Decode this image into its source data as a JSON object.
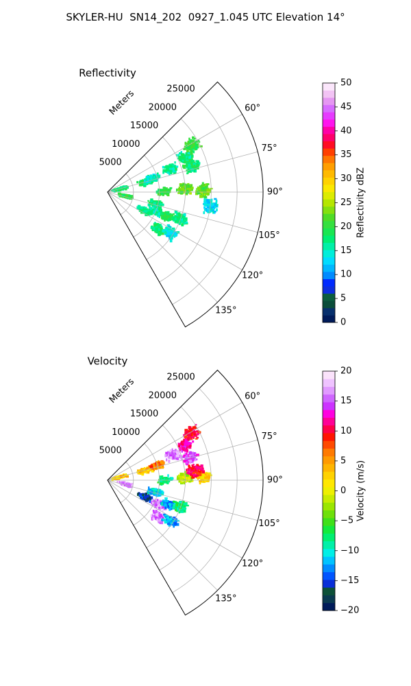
{
  "figure": {
    "title": "SKYLER-HU  SN14_202  0927_1.045 UTC Elevation 14°"
  },
  "chart_data": [
    {
      "type": "heatmap",
      "projection": "polar-sector",
      "title": "Reflectivity",
      "radial_label": "Meters",
      "theta_range_deg": [
        45,
        150
      ],
      "r_max": 30000,
      "r_ticks": [
        5000,
        10000,
        15000,
        20000,
        25000
      ],
      "r_tick_labels": [
        "5000",
        "10000",
        "15000",
        "20000",
        "25000"
      ],
      "theta_ticks": [
        60,
        75,
        90,
        105,
        120,
        135
      ],
      "theta_tick_labels": [
        "60°",
        "75°",
        "90°",
        "105°",
        "120°",
        "135°"
      ],
      "grid": true,
      "colorbar": {
        "label": "Reflectivity dBZ",
        "min": 0,
        "max": 50,
        "ticks": [
          0,
          5,
          10,
          15,
          20,
          25,
          30,
          35,
          40,
          45,
          50
        ],
        "tick_labels": [
          "0",
          "5",
          "10",
          "15",
          "20",
          "25",
          "30",
          "35",
          "40",
          "45",
          "50"
        ],
        "colors": [
          "#001b5a",
          "#07306d",
          "#0a4d3a",
          "#0c5e3f",
          "#0d2edd",
          "#002aff",
          "#008bff",
          "#00b7ff",
          "#00dcff",
          "#00eeda",
          "#00f0a6",
          "#00ee73",
          "#1ae652",
          "#35e040",
          "#4fdc27",
          "#84e00f",
          "#b5e600",
          "#dcec00",
          "#fbe800",
          "#ffd200",
          "#ffba00",
          "#ff9e00",
          "#ff7600",
          "#ff3f00",
          "#ff0c24",
          "#ff006b",
          "#ff00a7",
          "#ff14ee",
          "#e63bff",
          "#d76cff",
          "#e597f2",
          "#f2c3f4",
          "#fbe6fb"
        ]
      },
      "cells": [
        {
          "r": 3500,
          "theta": 102,
          "value": 20
        },
        {
          "r": 2500,
          "theta": 76,
          "value": 18
        },
        {
          "r": 7500,
          "theta": 76,
          "value": 18
        },
        {
          "r": 9000,
          "theta": 73,
          "value": 15
        },
        {
          "r": 13000,
          "theta": 70,
          "value": 16
        },
        {
          "r": 16500,
          "theta": 66,
          "value": 17
        },
        {
          "r": 18500,
          "theta": 61,
          "value": 20
        },
        {
          "r": 17000,
          "theta": 73,
          "value": 18
        },
        {
          "r": 11000,
          "theta": 90,
          "value": 20
        },
        {
          "r": 15000,
          "theta": 88,
          "value": 22
        },
        {
          "r": 18500,
          "theta": 89,
          "value": 22
        },
        {
          "r": 9500,
          "theta": 104,
          "value": 18
        },
        {
          "r": 10000,
          "theta": 111,
          "value": 16
        },
        {
          "r": 8000,
          "theta": 117,
          "value": 17
        },
        {
          "r": 12500,
          "theta": 112,
          "value": 19
        },
        {
          "r": 15000,
          "theta": 110,
          "value": 17
        },
        {
          "r": 12000,
          "theta": 126,
          "value": 18
        },
        {
          "r": 14500,
          "theta": 123,
          "value": 14
        },
        {
          "r": 20000,
          "theta": 98,
          "value": 13
        }
      ]
    },
    {
      "type": "heatmap",
      "projection": "polar-sector",
      "title": "Velocity",
      "radial_label": "Meters",
      "theta_range_deg": [
        45,
        150
      ],
      "r_max": 30000,
      "r_ticks": [
        5000,
        10000,
        15000,
        20000,
        25000
      ],
      "r_tick_labels": [
        "5000",
        "10000",
        "15000",
        "20000",
        "25000"
      ],
      "theta_ticks": [
        60,
        75,
        90,
        105,
        120,
        135
      ],
      "theta_tick_labels": [
        "60°",
        "75°",
        "90°",
        "105°",
        "120°",
        "135°"
      ],
      "grid": true,
      "colorbar": {
        "label": "Velocity (m/s)",
        "min": -20,
        "max": 20,
        "ticks": [
          -20,
          -15,
          -10,
          -5,
          0,
          5,
          10,
          15,
          20
        ],
        "tick_labels": [
          "−20",
          "−15",
          "−10",
          "−5",
          "0",
          "5",
          "10",
          "15",
          "20"
        ],
        "colors": [
          "#001b5a",
          "#0a3a50",
          "#0d5138",
          "#0a2fd8",
          "#0055ff",
          "#008cff",
          "#00c3ff",
          "#00efe6",
          "#00f0a8",
          "#00ef70",
          "#13ea3c",
          "#3fe019",
          "#6ee00a",
          "#9be600",
          "#c8ec00",
          "#eef000",
          "#ffe800",
          "#ffd200",
          "#ffb500",
          "#ff9a00",
          "#ff7a00",
          "#ff4a00",
          "#ff1400",
          "#ff0048",
          "#ff0096",
          "#ff00e0",
          "#cc33ff",
          "#cf66ff",
          "#e19aff",
          "#efc3ff",
          "#fbe3fb"
        ]
      },
      "cells": [
        {
          "r": 3500,
          "theta": 102,
          "value": 16
        },
        {
          "r": 2500,
          "theta": 76,
          "value": 3
        },
        {
          "r": 7500,
          "theta": 76,
          "value": 3
        },
        {
          "r": 10000,
          "theta": 74,
          "value": 6
        },
        {
          "r": 13500,
          "theta": 69,
          "value": 16
        },
        {
          "r": 16500,
          "theta": 66,
          "value": 12
        },
        {
          "r": 18500,
          "theta": 61,
          "value": 10
        },
        {
          "r": 16500,
          "theta": 75,
          "value": 15
        },
        {
          "r": 11000,
          "theta": 90,
          "value": -8
        },
        {
          "r": 15000,
          "theta": 88,
          "value": -2
        },
        {
          "r": 18500,
          "theta": 88,
          "value": 2
        },
        {
          "r": 17000,
          "theta": 84,
          "value": 10
        },
        {
          "r": 9500,
          "theta": 104,
          "value": -11
        },
        {
          "r": 8000,
          "theta": 114,
          "value": -16
        },
        {
          "r": 11000,
          "theta": 115,
          "value": 16
        },
        {
          "r": 12500,
          "theta": 112,
          "value": -12
        },
        {
          "r": 15000,
          "theta": 110,
          "value": -8
        },
        {
          "r": 12000,
          "theta": 126,
          "value": 16
        },
        {
          "r": 14500,
          "theta": 123,
          "value": -12
        }
      ]
    }
  ]
}
